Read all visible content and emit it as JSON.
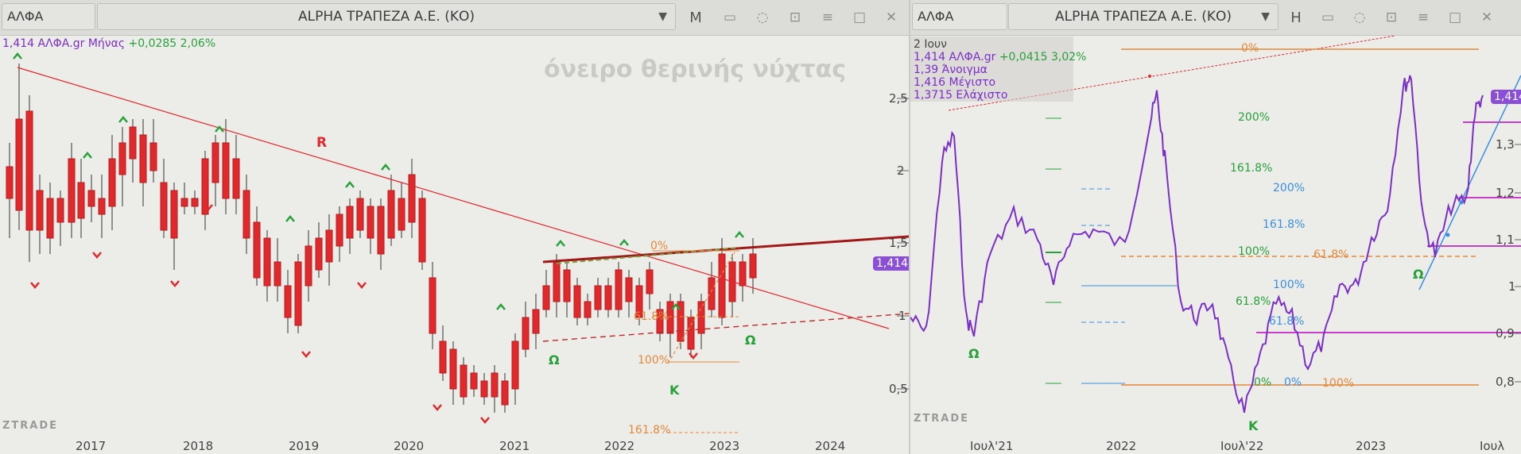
{
  "left": {
    "symbol": "ΑΛΦΑ",
    "title": "ALPHA ΤΡΑΠΕΖΑ Α.Ε. (ΚΟ)",
    "period": "M",
    "info_main": "1,414 ΑΛΦΑ.gr Μήνας",
    "info_change": "+0,0285 2,06%",
    "watermark": "όνειρο θερινής νύχτας",
    "brand": "ZTRADE",
    "price_tag": "1,414",
    "x_labels": [
      "2017",
      "2018",
      "2019",
      "2020",
      "2021",
      "2022",
      "2023",
      "2024"
    ],
    "y_labels": [
      "2,5",
      "2",
      "1,5",
      "1",
      "0,5"
    ],
    "annotations": {
      "R": "R",
      "omega1": "Ω",
      "omega2": "Ω",
      "K": "K",
      "fib0": "0%",
      "fib618": "61.8%",
      "fib100": "100%",
      "fib1618": "161.8%"
    }
  },
  "right": {
    "symbol": "ΑΛΦΑ",
    "title": "ALPHA ΤΡΑΠΕΖΑ Α.Ε. (ΚΟ)",
    "period": "H",
    "info_date": "2 Ιουν",
    "info_main": "1,414 ΑΛΦΑ.gr",
    "info_change": "+0,0415 3,02%",
    "info_open": "1,39 Άνοιγμα",
    "info_high": "1,416 Μέγιστο",
    "info_low": "1,3715 Ελάχιστο",
    "brand": "ZTRADE",
    "price_tag": "1,414",
    "x_labels": [
      "Ιουλ'21",
      "2022",
      "Ιουλ'22",
      "2023",
      "Ιουλ"
    ],
    "y_labels": [
      "1,3",
      "1,2",
      "1,1",
      "1",
      "0,9",
      "0,8"
    ],
    "fib_green": [
      "200%",
      "161.8%",
      "100%",
      "61.8%",
      "0%"
    ],
    "fib_blue": [
      "200%",
      "161.8%",
      "100%",
      "61.8%",
      "0%"
    ],
    "fib_orange": [
      "0%",
      "61.8%",
      "100%"
    ],
    "annotations": {
      "omega1": "Ω",
      "omega2": "Ω",
      "K": "K"
    }
  }
}
